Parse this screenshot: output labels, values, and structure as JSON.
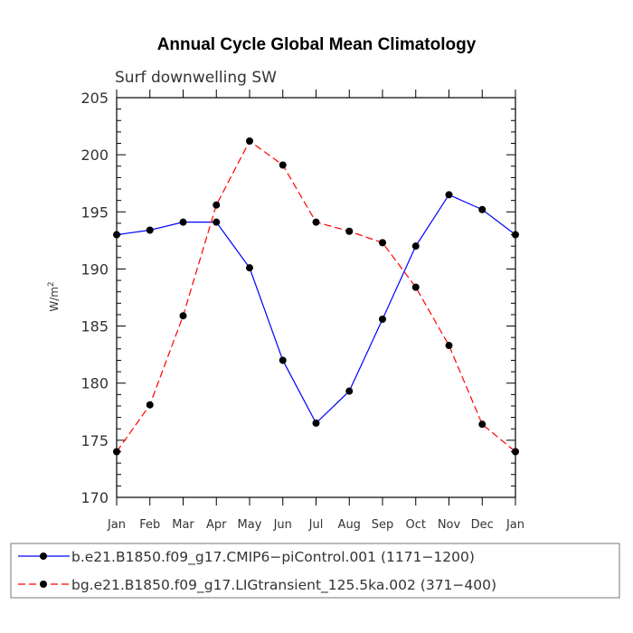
{
  "chart_data": {
    "type": "line",
    "title": "Annual Cycle Global Mean Climatology",
    "subtitle": "Surf downwelling SW",
    "ylabel": "W/m",
    "ylabel_sup": "2",
    "xlabel": "",
    "categories": [
      "Jan",
      "Feb",
      "Mar",
      "Apr",
      "May",
      "Jun",
      "Jul",
      "Aug",
      "Sep",
      "Oct",
      "Nov",
      "Dec",
      "Jan"
    ],
    "ylim": [
      170,
      205
    ],
    "yticks": [
      170,
      175,
      180,
      185,
      190,
      195,
      200,
      205
    ],
    "series": [
      {
        "name": "b.e21.B1850.f09_g17.CMIP6−piControl.001 (1171−1200)",
        "color": "#0000ff",
        "dash": "solid",
        "values": [
          193.0,
          193.4,
          194.1,
          194.1,
          190.1,
          182.0,
          176.5,
          179.3,
          185.6,
          192.0,
          196.5,
          195.2,
          193.0
        ]
      },
      {
        "name": "bg.e21.B1850.f09_g17.LIGtransient_125.5ka.002 (371−400)",
        "color": "#ff0000",
        "dash": "dashed",
        "values": [
          174.0,
          178.1,
          185.9,
          195.6,
          201.2,
          199.1,
          194.1,
          193.3,
          192.3,
          188.4,
          183.3,
          176.4,
          174.0
        ]
      }
    ],
    "legend_position": "bottom"
  }
}
